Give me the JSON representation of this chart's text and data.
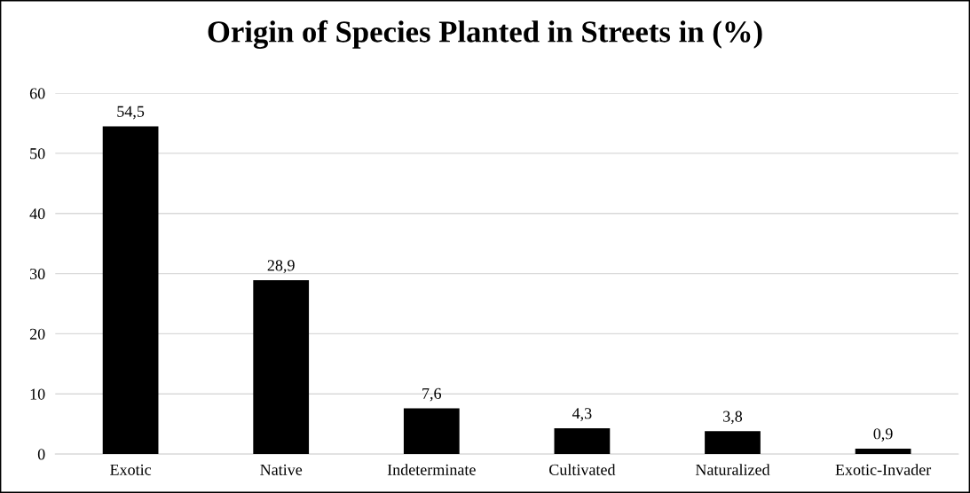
{
  "chart_data": {
    "type": "bar",
    "title": "Origin of Species Planted in Streets in (%)",
    "categories": [
      "Exotic",
      "Native",
      "Indeterminate",
      "Cultivated",
      "Naturalized",
      "Exotic-Invader"
    ],
    "values": [
      54.5,
      28.9,
      7.6,
      4.3,
      3.8,
      0.9
    ],
    "value_labels": [
      "54,5",
      "28,9",
      "7,6",
      "4,3",
      "3,8",
      "0,9"
    ],
    "color": "#000000",
    "ylim": [
      0,
      60
    ],
    "yticks": [
      0,
      10,
      20,
      30,
      40,
      50,
      60
    ],
    "grid": "y"
  }
}
